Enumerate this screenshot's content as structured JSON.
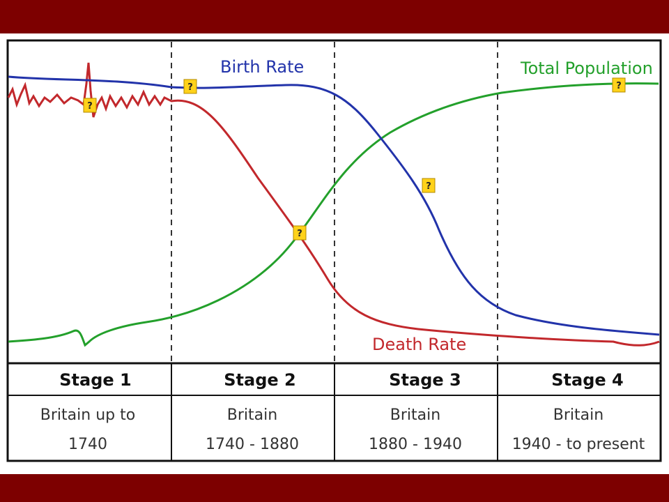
{
  "colors": {
    "frame_bar": "#7d0000",
    "birth": "#2233aa",
    "death": "#c2282c",
    "population": "#23a02b",
    "marker_fill": "#ffd21a"
  },
  "labels": {
    "birth_rate": "Birth Rate",
    "death_rate": "Death Rate",
    "total_population": "Total Population"
  },
  "marker_text": "?",
  "stages": [
    {
      "title": "Stage 1",
      "line1": "Britain up to",
      "line2": "1740"
    },
    {
      "title": "Stage 2",
      "line1": "Britain",
      "line2": "1740 - 1880"
    },
    {
      "title": "Stage 3",
      "line1": "Britain",
      "line2": "1880 - 1940"
    },
    {
      "title": "Stage 4",
      "line1": "Britain",
      "line2": "1940 - to present"
    }
  ]
}
